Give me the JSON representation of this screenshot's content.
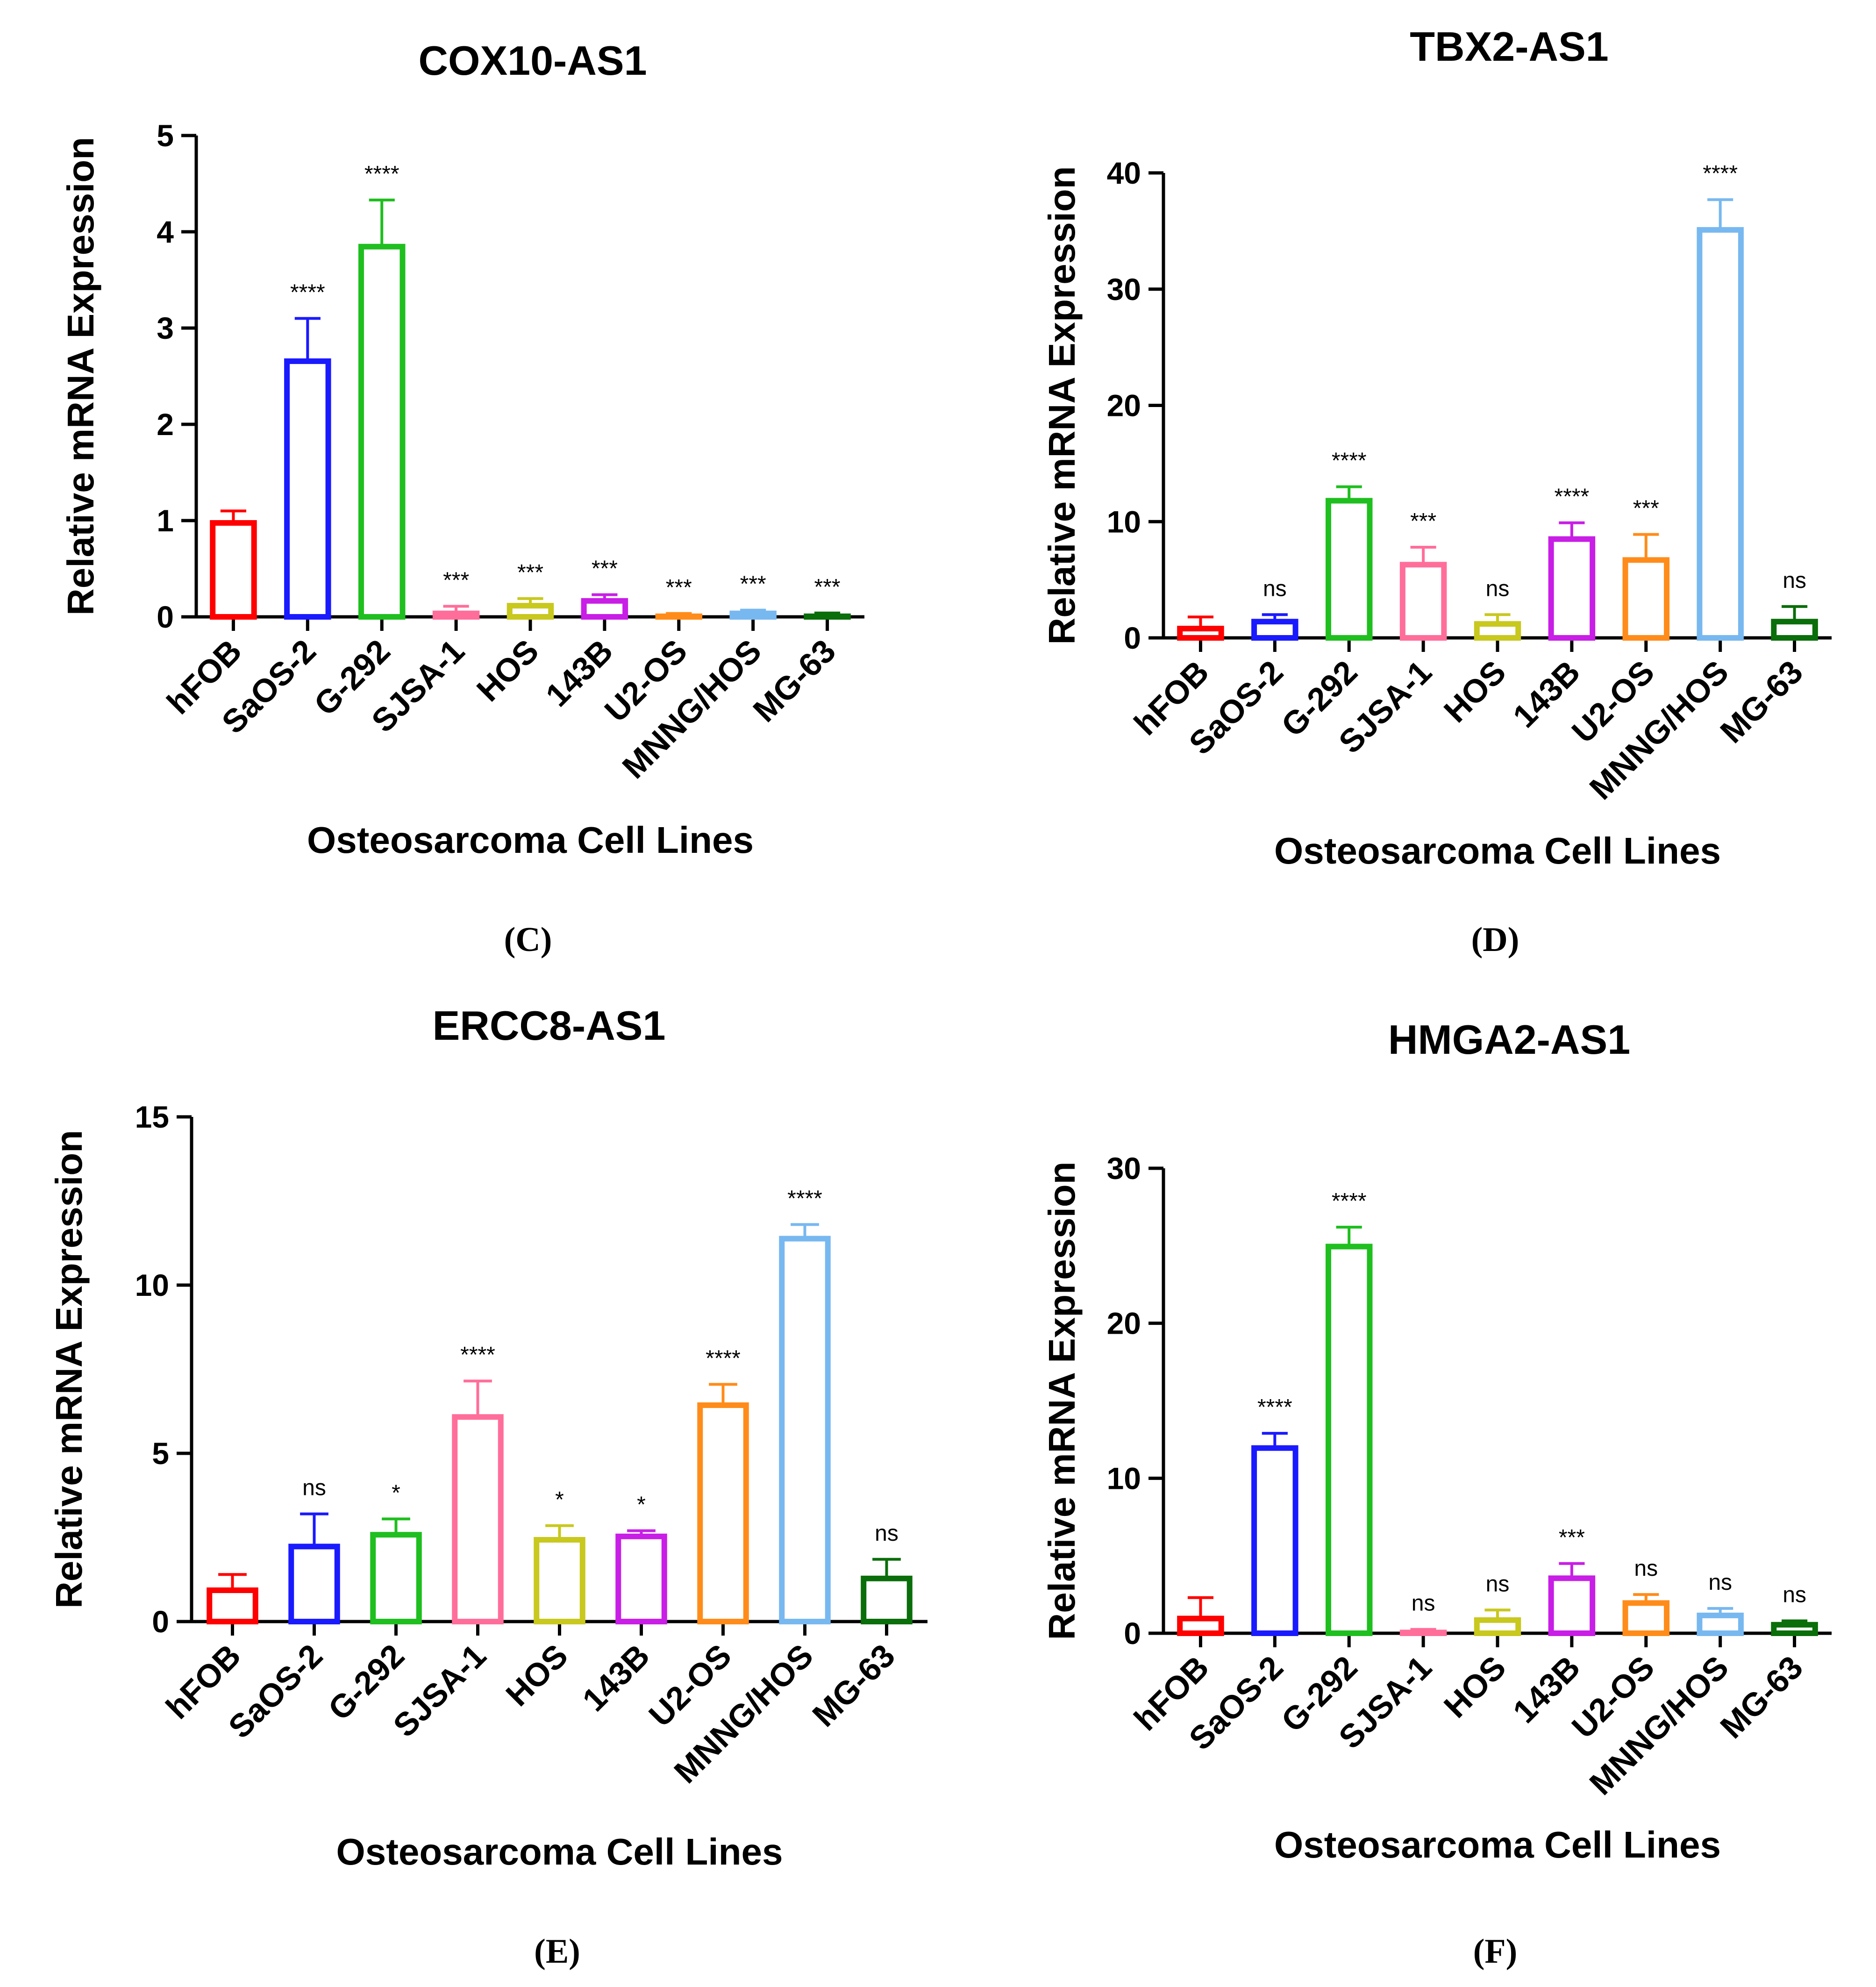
{
  "colors": [
    "#ff0000",
    "#1a1aff",
    "#1fbf1f",
    "#ff6e9a",
    "#c8c81e",
    "#c81ee6",
    "#ff8c1a",
    "#78b8f0",
    "#0a6e0a"
  ],
  "chart_data": [
    {
      "type": "bar",
      "title": "COX10-AS1",
      "panel": "(C)",
      "xlabel": "Osteosarcoma Cell Lines",
      "ylabel": "Relative mRNA Expression",
      "ylim": [
        0,
        5
      ],
      "yticks": [
        0,
        1,
        2,
        3,
        4,
        5
      ],
      "categories": [
        "hFOB",
        "SaOS-2",
        "G-292",
        "SJSA-1",
        "HOS",
        "143B",
        "U2-OS",
        "MNNG/HOS",
        "MG-63"
      ],
      "values": [
        1.0,
        2.68,
        3.87,
        0.06,
        0.14,
        0.19,
        0.03,
        0.06,
        0.03
      ],
      "errors": [
        0.1,
        0.42,
        0.46,
        0.05,
        0.05,
        0.04,
        0.005,
        0.01,
        0.01
      ],
      "significance": [
        "",
        "****",
        "****",
        "***",
        "***",
        "***",
        "***",
        "***",
        "***"
      ]
    },
    {
      "type": "bar",
      "title": "TBX2-AS1",
      "panel": "(D)",
      "xlabel": "Osteosarcoma Cell Lines",
      "ylabel": "Relative mRNA Expression",
      "ylim": [
        0,
        40
      ],
      "yticks": [
        0,
        10,
        20,
        30,
        40
      ],
      "categories": [
        "hFOB",
        "SaOS-2",
        "G-292",
        "SJSA-1",
        "HOS",
        "143B",
        "U2-OS",
        "MNNG/HOS",
        "MG-63"
      ],
      "values": [
        1.0,
        1.6,
        12.0,
        6.5,
        1.4,
        8.7,
        6.9,
        35.3,
        1.6
      ],
      "errors": [
        0.8,
        0.4,
        1.0,
        1.3,
        0.6,
        1.2,
        2.0,
        2.4,
        1.1
      ],
      "significance": [
        "",
        "ns",
        "****",
        "***",
        "ns",
        "****",
        "***",
        "****",
        "ns"
      ]
    },
    {
      "type": "bar",
      "title": "ERCC8-AS1",
      "panel": "(E)",
      "xlabel": "Osteosarcoma Cell Lines",
      "ylabel": "Relative mRNA Expression",
      "ylim": [
        0,
        15
      ],
      "yticks": [
        0,
        5,
        10,
        15
      ],
      "categories": [
        "hFOB",
        "SaOS-2",
        "G-292",
        "SJSA-1",
        "HOS",
        "143B",
        "U2-OS",
        "MNNG/HOS",
        "MG-63"
      ],
      "values": [
        1.0,
        2.3,
        2.65,
        6.15,
        2.5,
        2.6,
        6.5,
        11.45,
        1.35
      ],
      "errors": [
        0.4,
        0.9,
        0.4,
        1.0,
        0.35,
        0.1,
        0.55,
        0.35,
        0.5
      ],
      "significance": [
        "",
        "ns",
        "*",
        "****",
        "*",
        "*",
        "****",
        "****",
        "ns"
      ]
    },
    {
      "type": "bar",
      "title": "HMGA2-AS1",
      "panel": "(F)",
      "xlabel": "Osteosarcoma Cell Lines",
      "ylabel": "Relative mRNA Expression",
      "ylim": [
        0,
        30
      ],
      "yticks": [
        0,
        10,
        20,
        30
      ],
      "categories": [
        "hFOB",
        "SaOS-2",
        "G-292",
        "SJSA-1",
        "HOS",
        "143B",
        "U2-OS",
        "MNNG/HOS",
        "MG-63"
      ],
      "values": [
        1.1,
        12.1,
        25.1,
        0.2,
        1.0,
        3.7,
        2.1,
        1.3,
        0.7
      ],
      "errors": [
        1.2,
        0.8,
        1.1,
        0.05,
        0.5,
        0.8,
        0.4,
        0.3,
        0.1
      ],
      "significance": [
        "",
        "****",
        "****",
        "ns",
        "ns",
        "***",
        "ns",
        "ns",
        "ns"
      ]
    }
  ]
}
